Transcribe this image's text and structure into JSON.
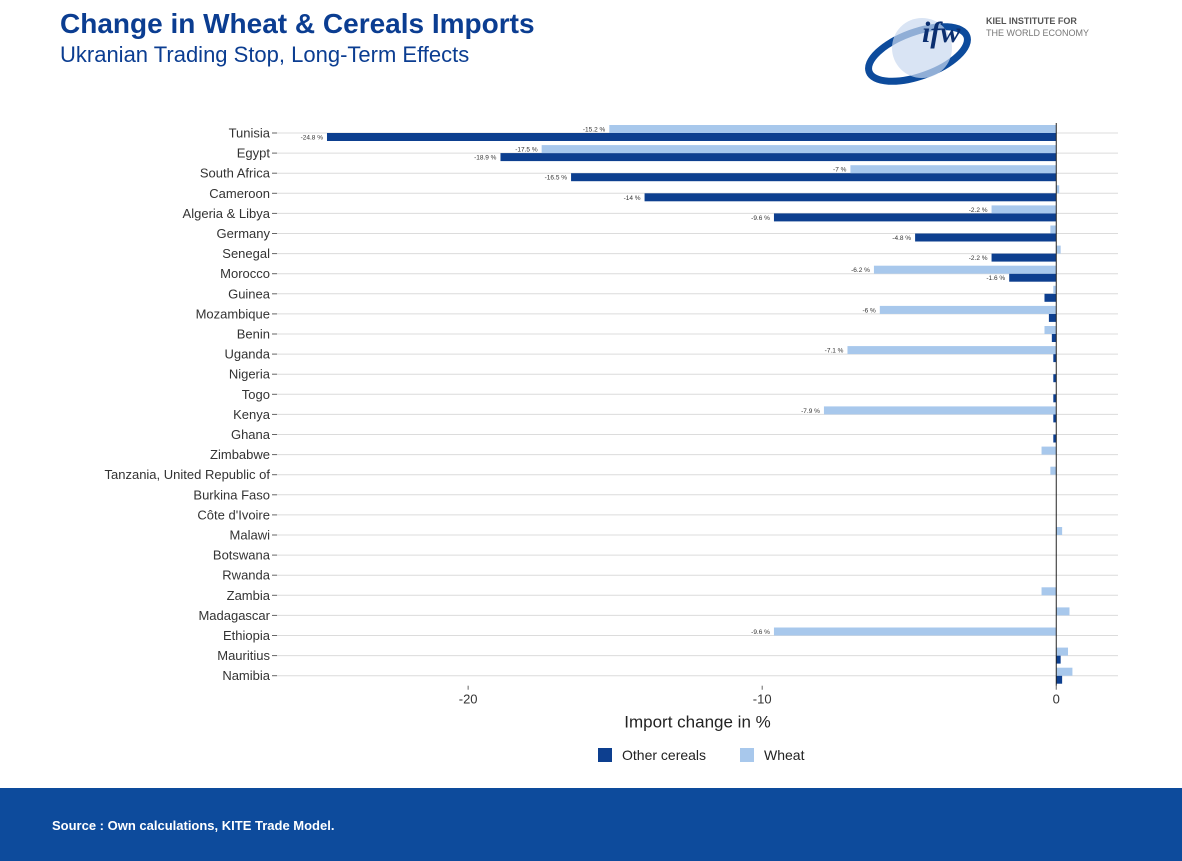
{
  "header": {
    "title": "Change in Wheat & Cereals Imports",
    "subtitle": "Ukranian Trading Stop, Long-Term Effects"
  },
  "logo": {
    "mark": "ifw",
    "line1": "KIEL INSTITUTE FOR",
    "line2": "THE WORLD ECONOMY"
  },
  "footer": {
    "source": "Source : Own calculations, KITE Trade Model."
  },
  "colors": {
    "other_cereals": "#0d3f8f",
    "wheat": "#a8c8ec",
    "brand_blue": "#0d4b9c"
  },
  "chart_data": {
    "type": "bar",
    "orientation": "horizontal",
    "xlabel": "Import change in %",
    "xlim": [
      -26.5,
      2.1
    ],
    "xticks": [
      -20,
      -10,
      0
    ],
    "grid": true,
    "legend_position": "bottom",
    "categories": [
      "Tunisia",
      "Egypt",
      "South Africa",
      "Cameroon",
      "Algeria & Libya",
      "Germany",
      "Senegal",
      "Morocco",
      "Guinea",
      "Mozambique",
      "Benin",
      "Uganda",
      "Nigeria",
      "Togo",
      "Kenya",
      "Ghana",
      "Zimbabwe",
      "Tanzania, United Republic of",
      "Burkina Faso",
      "Côte d'Ivoire",
      "Malawi",
      "Botswana",
      "Rwanda",
      "Zambia",
      "Madagascar",
      "Ethiopia",
      "Mauritius",
      "Namibia"
    ],
    "series": [
      {
        "name": "Other cereals",
        "values": [
          -24.8,
          -18.9,
          -16.5,
          -14,
          -9.6,
          -4.8,
          -2.2,
          -1.6,
          -0.4,
          -0.25,
          -0.15,
          -0.1,
          -0.1,
          -0.1,
          -0.1,
          -0.1,
          0,
          0,
          0,
          0,
          0,
          0,
          0,
          0,
          0,
          0,
          0.15,
          0.2
        ],
        "labels": [
          "-24.8 %",
          "-18.9 %",
          "-16.5 %",
          "-14 %",
          "-9.6 %",
          "-4.8 %",
          "-2.2 %",
          "-1.6 %",
          "",
          "",
          "",
          "",
          "",
          "",
          "",
          "",
          "",
          "",
          "",
          "",
          "",
          "",
          "",
          "",
          "",
          "",
          "",
          ""
        ]
      },
      {
        "name": "Wheat",
        "values": [
          -15.2,
          -17.5,
          -7,
          0.1,
          -2.2,
          -0.2,
          0.15,
          -6.2,
          -0.1,
          -6,
          -0.4,
          -7.1,
          0,
          0,
          -7.9,
          0,
          -0.5,
          -0.2,
          0,
          0,
          0.2,
          0,
          0,
          -0.5,
          0.45,
          -9.6,
          0.4,
          0.55
        ],
        "labels": [
          "-15.2 %",
          "-17.5 %",
          "-7 %",
          "",
          "-2.2 %",
          "",
          "",
          "-6.2 %",
          "",
          "-6 %",
          "",
          "-7.1 %",
          "",
          "",
          "-7.9 %",
          "",
          "",
          "",
          "",
          "",
          "",
          "",
          "",
          "",
          "",
          "-9.6 %",
          "",
          ""
        ]
      }
    ]
  }
}
